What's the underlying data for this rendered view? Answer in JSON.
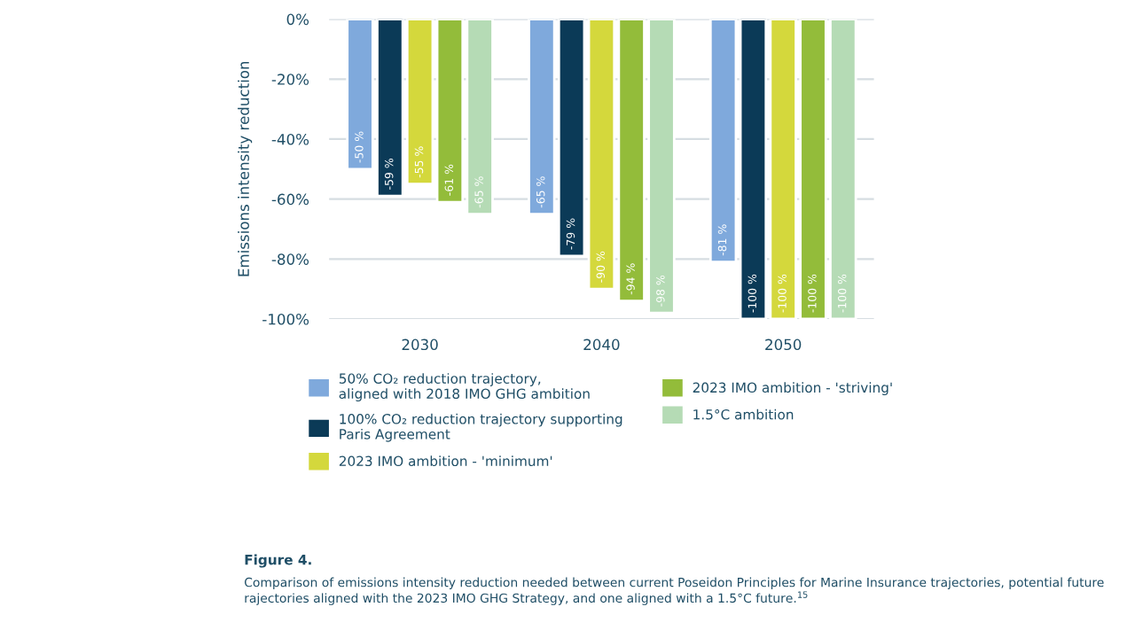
{
  "chart_data": {
    "type": "bar",
    "ylabel": "Emissions intensity reduction",
    "categories": [
      "2030",
      "2040",
      "2050"
    ],
    "series": [
      {
        "name": "50% CO₂ reduction trajectory,\naligned with 2018 IMO GHG ambition",
        "color": "#7fa9dc",
        "values": [
          -50,
          -65,
          -81
        ],
        "value_labels": [
          "-50 %",
          "-65 %",
          "-81 %"
        ]
      },
      {
        "name": "100% CO₂ reduction trajectory supporting\nParis Agreement",
        "color": "#0b3a57",
        "values": [
          -59,
          -79,
          -100
        ],
        "value_labels": [
          "-59 %",
          "-79 %",
          "-100 %"
        ]
      },
      {
        "name": "2023 IMO ambition - 'minimum'",
        "color": "#d4d83c",
        "values": [
          -55,
          -90,
          -100
        ],
        "value_labels": [
          "-55 %",
          "-90 %",
          "-100 %"
        ]
      },
      {
        "name": "2023 IMO ambition - 'striving'",
        "color": "#93bc3a",
        "values": [
          -61,
          -94,
          -100
        ],
        "value_labels": [
          "-61 %",
          "-94 %",
          "-100 %"
        ]
      },
      {
        "name": "1.5°C ambition",
        "color": "#b5dbb5",
        "values": [
          -65,
          -98,
          -100
        ],
        "value_labels": [
          "-65 %",
          "-98 %",
          "-100 %"
        ]
      }
    ],
    "ylim": [
      -100,
      0
    ],
    "yticks": [
      {
        "value": 0,
        "label": "0%"
      },
      {
        "value": -20,
        "label": "-20%"
      },
      {
        "value": -40,
        "label": "-40%"
      },
      {
        "value": -60,
        "label": "-60%"
      },
      {
        "value": -80,
        "label": "-80%"
      },
      {
        "value": -100,
        "label": "-100%"
      }
    ],
    "grid": "y",
    "legend": "bottom",
    "annotations": [
      "Figure 4.",
      "Comparison of emissions intensity reduction needed between current Poseidon Principles for Marine Insurance trajectories, potential future rajectories aligned with the 2023 IMO GHG Strategy, and one aligned with a 1.5°C future.$^{15}$"
    ]
  }
}
